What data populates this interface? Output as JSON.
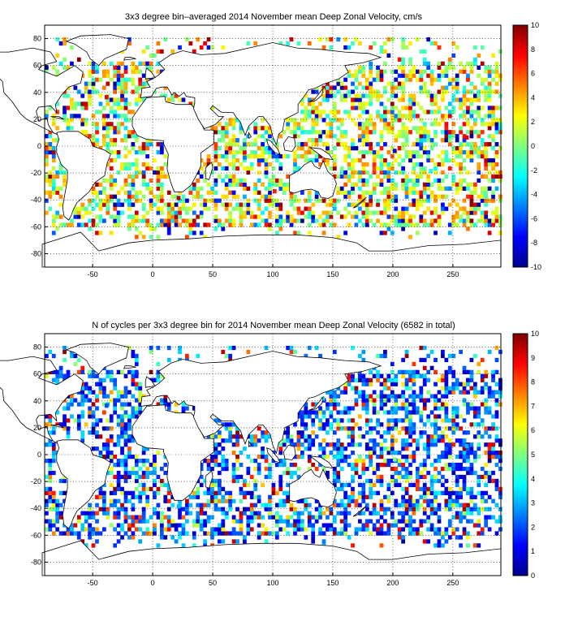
{
  "chart_data": [
    {
      "type": "heatmap",
      "title": "3x3 degree bin–averaged 2014 November mean Deep Zonal Velocity, cm/s",
      "xlim": [
        -90,
        290
      ],
      "ylim": [
        -90,
        90
      ],
      "x_ticks": [
        -50,
        0,
        50,
        100,
        150,
        200,
        250
      ],
      "y_ticks": [
        80,
        60,
        40,
        20,
        0,
        -20,
        -40,
        -60,
        -80
      ],
      "grid": true,
      "bin_size_deg": 3,
      "colorbar": {
        "min": -10,
        "max": 10,
        "ticks": [
          10,
          8,
          6,
          4,
          2,
          0,
          -2,
          -4,
          -6,
          -8,
          -10
        ],
        "colormap": "jet",
        "placement": "right"
      },
      "sample_bins": [
        {
          "lon": -40,
          "lat": 35,
          "value": 8
        },
        {
          "lon": -30,
          "lat": -45,
          "value": -6
        },
        {
          "lon": 20,
          "lat": -40,
          "value": 9
        },
        {
          "lon": 60,
          "lat": -45,
          "value": 10
        },
        {
          "lon": 75,
          "lat": -10,
          "value": -5
        },
        {
          "lon": 100,
          "lat": -35,
          "value": 7
        },
        {
          "lon": 140,
          "lat": 40,
          "value": 3
        },
        {
          "lon": 180,
          "lat": 0,
          "value": 9
        },
        {
          "lon": 200,
          "lat": -5,
          "value": -8
        },
        {
          "lon": 210,
          "lat": 20,
          "value": 1
        },
        {
          "lon": 230,
          "lat": -20,
          "value": -2
        },
        {
          "lon": 260,
          "lat": 5,
          "value": 8
        }
      ]
    },
    {
      "type": "heatmap",
      "title": "N of cycles per 3x3 degree bin for 2014 November mean Deep Zonal Velocity (6582 in total)",
      "xlim": [
        -90,
        290
      ],
      "ylim": [
        -90,
        90
      ],
      "x_ticks": [
        -50,
        0,
        50,
        100,
        150,
        200,
        250
      ],
      "y_ticks": [
        80,
        60,
        40,
        20,
        0,
        -20,
        -40,
        -60,
        -80
      ],
      "grid": true,
      "bin_size_deg": 3,
      "colorbar": {
        "min": 0,
        "max": 10,
        "ticks": [
          10,
          9,
          8,
          7,
          6,
          5,
          4,
          3,
          2,
          1,
          0
        ],
        "colormap": "jet",
        "placement": "right"
      },
      "sample_bins": [
        {
          "lon": -40,
          "lat": 35,
          "value": 2
        },
        {
          "lon": -30,
          "lat": -45,
          "value": 1
        },
        {
          "lon": 20,
          "lat": -40,
          "value": 3
        },
        {
          "lon": 60,
          "lat": -45,
          "value": 2
        },
        {
          "lon": 140,
          "lat": 40,
          "value": 4
        },
        {
          "lon": 180,
          "lat": 0,
          "value": 6
        },
        {
          "lon": 200,
          "lat": -5,
          "value": 5
        },
        {
          "lon": 260,
          "lat": 5,
          "value": 3
        }
      ]
    }
  ]
}
